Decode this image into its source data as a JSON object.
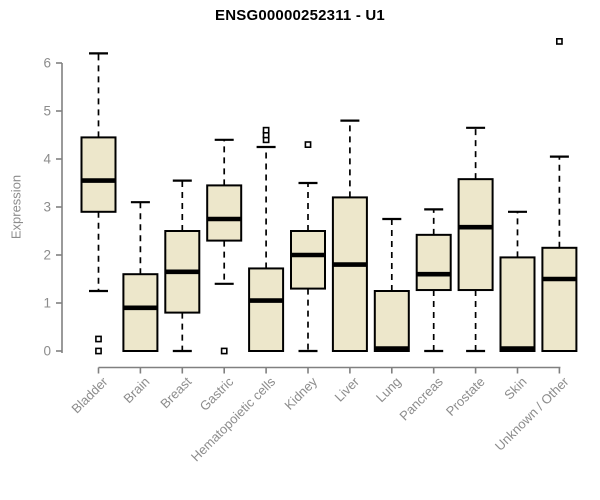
{
  "chart_data": {
    "type": "boxplot",
    "title": "ENSG00000252311 - U1",
    "ylabel": "Expression",
    "ylim": [
      0,
      6.6
    ],
    "yticks": [
      0,
      1,
      2,
      3,
      4,
      5,
      6
    ],
    "grid": false,
    "legend": "none",
    "categories": [
      "Bladder",
      "Brain",
      "Breast",
      "Gastric",
      "Hematopoietic cells",
      "Kidney",
      "Liver",
      "Lung",
      "Pancreas",
      "Prostate",
      "Skin",
      "Unknown / Other"
    ],
    "series": [
      {
        "category": "Bladder",
        "whisker_low": 1.25,
        "q1": 2.9,
        "median": 3.55,
        "q3": 4.45,
        "whisker_high": 6.2,
        "outliers": [
          0.25,
          0.0
        ]
      },
      {
        "category": "Brain",
        "whisker_low": 0.0,
        "q1": 0.0,
        "median": 0.9,
        "q3": 1.6,
        "whisker_high": 3.1,
        "outliers": []
      },
      {
        "category": "Breast",
        "whisker_low": 0.0,
        "q1": 0.8,
        "median": 1.65,
        "q3": 2.5,
        "whisker_high": 3.55,
        "outliers": []
      },
      {
        "category": "Gastric",
        "whisker_low": 1.4,
        "q1": 2.3,
        "median": 2.75,
        "q3": 3.45,
        "whisker_high": 4.4,
        "outliers": [
          0.0
        ]
      },
      {
        "category": "Hematopoietic cells",
        "whisker_low": 0.0,
        "q1": 0.0,
        "median": 1.05,
        "q3": 1.72,
        "whisker_high": 4.25,
        "outliers": [
          4.4,
          4.5,
          4.6
        ]
      },
      {
        "category": "Kidney",
        "whisker_low": 0.0,
        "q1": 1.3,
        "median": 2.0,
        "q3": 2.5,
        "whisker_high": 3.5,
        "outliers": [
          4.3
        ]
      },
      {
        "category": "Liver",
        "whisker_low": 0.0,
        "q1": 0.0,
        "median": 1.8,
        "q3": 3.2,
        "whisker_high": 4.8,
        "outliers": []
      },
      {
        "category": "Lung",
        "whisker_low": 0.0,
        "q1": 0.0,
        "median": 0.05,
        "q3": 1.25,
        "whisker_high": 2.75,
        "outliers": []
      },
      {
        "category": "Pancreas",
        "whisker_low": 0.0,
        "q1": 1.27,
        "median": 1.6,
        "q3": 2.42,
        "whisker_high": 2.95,
        "outliers": []
      },
      {
        "category": "Prostate",
        "whisker_low": 0.0,
        "q1": 1.27,
        "median": 2.58,
        "q3": 3.58,
        "whisker_high": 4.65,
        "outliers": []
      },
      {
        "category": "Skin",
        "whisker_low": 0.0,
        "q1": 0.0,
        "median": 0.05,
        "q3": 1.95,
        "whisker_high": 2.9,
        "outliers": []
      },
      {
        "category": "Unknown / Other",
        "whisker_low": 0.0,
        "q1": 0.0,
        "median": 1.5,
        "q3": 2.15,
        "whisker_high": 4.05,
        "outliers": [
          6.45
        ]
      }
    ],
    "colors": {
      "box_fill": "#EDE7CB",
      "box_stroke": "#000000",
      "median": "#000000",
      "whisker": "#000000",
      "axis": "#808080",
      "tick_label": "#8C8C8C",
      "title": "#000000",
      "background": "#FFFFFF"
    }
  }
}
